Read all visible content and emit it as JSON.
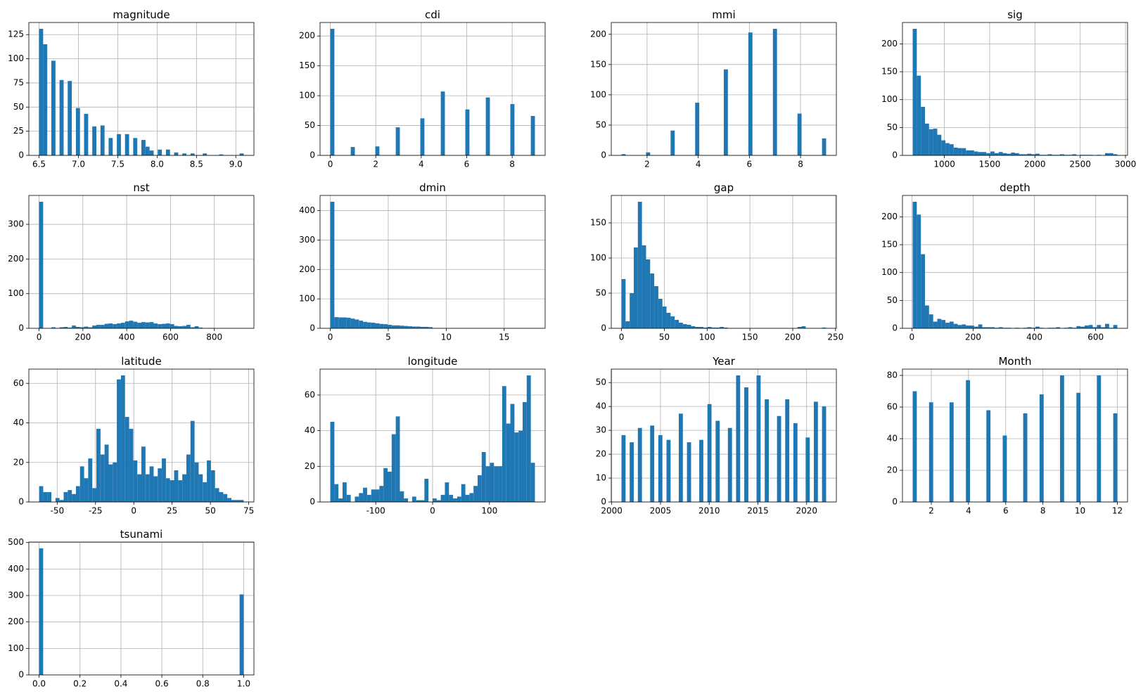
{
  "chart_data": [
    {
      "type": "histogram",
      "title": "magnitude",
      "color": "#1f77b4",
      "grid": true,
      "bins": [
        6.5,
        6.552,
        6.604,
        6.656,
        6.708,
        6.76,
        6.812,
        6.864,
        6.916,
        6.968,
        7.02,
        7.072,
        7.124,
        7.176,
        7.228,
        7.28,
        7.332,
        7.384,
        7.436,
        7.488,
        7.54,
        7.592,
        7.644,
        7.696,
        7.748,
        7.8,
        7.852,
        7.904,
        7.956,
        8.008,
        8.06,
        8.112,
        8.164,
        8.216,
        8.268,
        8.32,
        8.372,
        8.424,
        8.476,
        8.528,
        8.58,
        8.632,
        8.684,
        8.736,
        8.788,
        8.84,
        8.892,
        8.944,
        8.996,
        9.048,
        9.1
      ],
      "counts": [
        131,
        115,
        0,
        98,
        0,
        78,
        0,
        77,
        0,
        49,
        0,
        43,
        0,
        30,
        0,
        31,
        0,
        18,
        0,
        22,
        0,
        22,
        0,
        18,
        0,
        16,
        9,
        5,
        0,
        6,
        0,
        6,
        0,
        3,
        0,
        2,
        0,
        2,
        0,
        0,
        2,
        0,
        0,
        0,
        1,
        0,
        0,
        0,
        0,
        2
      ],
      "xlim": [
        6.37,
        9.23
      ],
      "ylim": [
        0,
        137.55
      ],
      "xticks": [
        6.5,
        {
          "value": 7,
          "label": "7.0"
        },
        7.5,
        {
          "value": 8,
          "label": "8.0"
        },
        8.5,
        {
          "value": 9,
          "label": "9.0"
        }
      ],
      "yticks": [
        0,
        25,
        50,
        75,
        100,
        125
      ]
    },
    {
      "type": "histogram",
      "title": "cdi",
      "color": "#1f77b4",
      "grid": true,
      "bins": [
        0,
        0.18,
        0.9,
        1.08,
        1.98,
        2.16,
        2.88,
        3.06,
        3.96,
        4.14,
        4.86,
        5.04,
        5.94,
        6.12,
        6.84,
        7.02,
        7.92,
        8.1,
        8.82,
        9
      ],
      "counts": [
        212,
        0,
        14,
        0,
        15,
        0,
        47,
        0,
        62,
        0,
        107,
        0,
        77,
        0,
        97,
        0,
        86,
        0,
        66
      ],
      "xlim": [
        -0.45,
        9.45
      ],
      "ylim": [
        0,
        222.6
      ],
      "xticks": [
        0,
        2,
        4,
        6,
        8
      ],
      "yticks": [
        0,
        50,
        100,
        150,
        200
      ]
    },
    {
      "type": "histogram",
      "title": "mmi",
      "color": "#1f77b4",
      "grid": true,
      "bins": [
        1,
        1.16,
        1.96,
        2.12,
        2.92,
        3.08,
        3.88,
        4.04,
        5,
        5.16,
        5.96,
        6.12,
        6.92,
        7.08,
        7.88,
        8.04,
        8.84,
        9
      ],
      "counts": [
        2,
        0,
        5,
        0,
        41,
        0,
        87,
        0,
        142,
        0,
        203,
        0,
        209,
        0,
        69,
        0,
        28
      ],
      "xlim": [
        0.6,
        9.4
      ],
      "ylim": [
        0,
        219.45
      ],
      "xticks": [
        2,
        4,
        6,
        8
      ],
      "yticks": [
        0,
        50,
        100,
        150,
        200
      ]
    },
    {
      "type": "histogram",
      "title": "sig",
      "color": "#1f77b4",
      "grid": true,
      "bins": [
        650,
        695.2,
        740.4,
        785.6,
        830.8,
        876,
        921.2,
        966.4,
        1011.6,
        1056.8,
        1102,
        1147.2,
        1192.4,
        1237.6,
        1282.8,
        1328,
        1373.2,
        1418.4,
        1463.6,
        1508.8,
        1554,
        1599.2,
        1644.4,
        1689.6,
        1734.8,
        1780,
        1825.2,
        1870.4,
        1915.6,
        1960.8,
        2006,
        2051.2,
        2096.4,
        2141.6,
        2186.8,
        2232,
        2277.2,
        2322.4,
        2367.6,
        2412.8,
        2458,
        2503.2,
        2548.4,
        2593.6,
        2638.8,
        2684,
        2729.2,
        2774.4,
        2819.6,
        2864.8,
        2910
      ],
      "counts": [
        227,
        143,
        87,
        57,
        47,
        48,
        37,
        27,
        22,
        20,
        14,
        13,
        13,
        9,
        9,
        7,
        6,
        6,
        4,
        7,
        4,
        6,
        4,
        3,
        5,
        4,
        2,
        2,
        3,
        2,
        3,
        1,
        1,
        2,
        1,
        1,
        2,
        1,
        1,
        2,
        0,
        1,
        1,
        1,
        0,
        1,
        0,
        4,
        4,
        2
      ],
      "xlim": [
        537,
        3023
      ],
      "ylim": [
        0,
        238.35
      ],
      "xticks": [
        1000,
        1500,
        2000,
        2500,
        3000
      ],
      "yticks": [
        0,
        50,
        100,
        150,
        200
      ]
    },
    {
      "type": "histogram",
      "title": "nst",
      "color": "#1f77b4",
      "grid": true,
      "bins": [
        0,
        18.68,
        37.36,
        56.04,
        74.72,
        93.4,
        112.08,
        130.76,
        149.44,
        168.12,
        186.8,
        205.48,
        224.16,
        242.84,
        261.52,
        280.2,
        298.88,
        317.56,
        336.24,
        354.92,
        373.6,
        392.28,
        410.96,
        429.64,
        448.32,
        467,
        485.68,
        504.36,
        523.04,
        541.72,
        560.4,
        579.08,
        597.76,
        616.44,
        635.12,
        653.8,
        672.48,
        691.16,
        709.84,
        728.52,
        747.2,
        765.88,
        784.56,
        803.24,
        821.92,
        840.6,
        859.28,
        877.96,
        896.64,
        915.32,
        934
      ],
      "counts": [
        365,
        0,
        1,
        3,
        1,
        3,
        4,
        2,
        8,
        4,
        3,
        5,
        3,
        8,
        10,
        10,
        13,
        14,
        12,
        14,
        16,
        20,
        22,
        19,
        16,
        18,
        17,
        18,
        14,
        12,
        13,
        14,
        12,
        7,
        6,
        7,
        10,
        3,
        6,
        2,
        0,
        1,
        1,
        0,
        0,
        0,
        1,
        0,
        0,
        1
      ],
      "xlim": [
        -46.7,
        980.7
      ],
      "ylim": [
        0,
        383.25
      ],
      "xticks": [
        0,
        200,
        400,
        600,
        800
      ],
      "yticks": [
        0,
        100,
        200,
        300
      ]
    },
    {
      "type": "histogram",
      "title": "dmin",
      "color": "#1f77b4",
      "grid": true,
      "bins": [
        0,
        0.353,
        0.706,
        1.059,
        1.412,
        1.765,
        2.118,
        2.471,
        2.824,
        3.177,
        3.53,
        3.883,
        4.236,
        4.589,
        4.942,
        5.295,
        5.648,
        6.001,
        6.354,
        6.707,
        7.06,
        7.413,
        7.766,
        8.119,
        8.472,
        8.825,
        17.297,
        17.65
      ],
      "counts": [
        430,
        38,
        37,
        37,
        36,
        33,
        30,
        26,
        22,
        20,
        19,
        17,
        15,
        14,
        12,
        10,
        10,
        9,
        8,
        7,
        6,
        6,
        5,
        5,
        4,
        0,
        1
      ],
      "xlim": [
        -0.8825,
        18.5325
      ],
      "ylim": [
        0,
        451.5
      ],
      "xticks": [
        0,
        5,
        10,
        15
      ],
      "yticks": [
        0,
        100,
        200,
        300,
        400
      ]
    },
    {
      "type": "histogram",
      "title": "gap",
      "color": "#1f77b4",
      "grid": true,
      "bins": [
        0,
        4.78,
        9.56,
        14.34,
        19.12,
        23.9,
        28.68,
        33.46,
        38.24,
        43.02,
        47.8,
        52.58,
        57.36,
        62.14,
        66.92,
        71.7,
        76.48,
        81.26,
        86.04,
        90.82,
        95.6,
        100.38,
        105.16,
        109.94,
        114.72,
        119.5,
        124.28,
        205.54,
        210.32,
        215.1,
        234.22,
        239
      ],
      "counts": [
        70,
        10,
        50,
        115,
        180,
        118,
        98,
        78,
        60,
        42,
        31,
        22,
        17,
        12,
        8,
        6,
        5,
        3,
        2,
        2,
        1,
        2,
        1,
        1,
        2,
        1,
        0,
        2,
        3,
        0,
        1
      ],
      "xlim": [
        -11.95,
        250.95
      ],
      "ylim": [
        0,
        189
      ],
      "xticks": [
        0,
        50,
        100,
        150,
        200,
        250
      ],
      "yticks": [
        0,
        50,
        100,
        150
      ]
    },
    {
      "type": "histogram",
      "title": "depth",
      "color": "#1f77b4",
      "grid": true,
      "bins": [
        2.7,
        16.06,
        29.42,
        42.78,
        56.14,
        69.5,
        82.86,
        96.22,
        109.58,
        122.94,
        136.3,
        149.66,
        163.02,
        176.38,
        189.74,
        203.1,
        216.46,
        229.82,
        243.18,
        256.54,
        269.9,
        283.26,
        296.62,
        309.98,
        323.34,
        336.7,
        350.06,
        363.42,
        376.78,
        390.14,
        403.5,
        416.86,
        430.22,
        443.58,
        456.94,
        470.3,
        483.66,
        497.02,
        510.38,
        523.74,
        537.1,
        550.46,
        563.82,
        577.18,
        590.54,
        603.9,
        617.26,
        630.62,
        643.98,
        657.34,
        670.7
      ],
      "counts": [
        227,
        204,
        133,
        41,
        25,
        12,
        17,
        15,
        10,
        12,
        8,
        6,
        7,
        5,
        5,
        3,
        7,
        2,
        2,
        2,
        1,
        2,
        1,
        1,
        0,
        1,
        0,
        1,
        2,
        1,
        3,
        1,
        0,
        1,
        1,
        2,
        0,
        1,
        2,
        1,
        4,
        3,
        5,
        6,
        2,
        6,
        2,
        8,
        1,
        6
      ],
      "xlim": [
        -30.7,
        704.1
      ],
      "ylim": [
        0,
        238.35
      ],
      "xticks": [
        0,
        200,
        400,
        600
      ],
      "yticks": [
        0,
        50,
        100,
        150,
        200
      ]
    },
    {
      "type": "histogram",
      "title": "latitude",
      "color": "#1f77b4",
      "grid": true,
      "bins": [
        -61.8,
        -59.13,
        -56.46,
        -53.79,
        -51.12,
        -48.45,
        -45.78,
        -43.11,
        -40.44,
        -37.77,
        -35.1,
        -32.43,
        -29.76,
        -27.09,
        -24.42,
        -21.75,
        -19.08,
        -16.41,
        -13.74,
        -11.07,
        -8.4,
        -5.73,
        -3.06,
        -0.39,
        2.28,
        4.95,
        7.62,
        10.29,
        12.96,
        15.63,
        18.3,
        20.97,
        23.64,
        26.31,
        28.98,
        31.65,
        34.32,
        36.99,
        39.66,
        42.33,
        45,
        47.67,
        50.34,
        53.01,
        55.68,
        58.35,
        61.02,
        63.69,
        66.36,
        69.03,
        71.7
      ],
      "counts": [
        8,
        5,
        5,
        0,
        2,
        1,
        5,
        6,
        4,
        8,
        18,
        12,
        22,
        7,
        37,
        24,
        29,
        19,
        20,
        62,
        64,
        43,
        37,
        21,
        14,
        28,
        14,
        18,
        13,
        17,
        22,
        12,
        11,
        16,
        11,
        14,
        24,
        41,
        20,
        14,
        10,
        21,
        16,
        7,
        5,
        4,
        2,
        1,
        1,
        1
      ],
      "xlim": [
        -68.5,
        78.4
      ],
      "ylim": [
        0,
        67.2
      ],
      "xticks": [
        -50,
        -25,
        0,
        25,
        50,
        75
      ],
      "yticks": [
        0,
        20,
        40,
        60
      ]
    },
    {
      "type": "histogram",
      "title": "longitude",
      "color": "#1f77b4",
      "grid": true,
      "bins": [
        -180,
        -172.8,
        -165.6,
        -158.4,
        -151.2,
        -144,
        -136.8,
        -129.6,
        -122.4,
        -115.2,
        -108,
        -100.8,
        -93.6,
        -86.4,
        -79.2,
        -72,
        -64.8,
        -57.6,
        -50.4,
        -43.2,
        -36,
        -28.8,
        -21.6,
        -14.4,
        -7.2,
        0,
        7.2,
        14.4,
        21.6,
        28.8,
        36,
        43.2,
        50.4,
        57.6,
        64.8,
        72,
        79.2,
        86.4,
        93.6,
        100.8,
        108,
        115.2,
        122.4,
        129.6,
        136.8,
        144,
        151.2,
        158.4,
        165.6,
        172.8,
        180
      ],
      "counts": [
        45,
        10,
        2,
        11,
        4,
        0,
        3,
        5,
        8,
        4,
        7,
        7,
        9,
        19,
        17,
        38,
        48,
        6,
        2,
        0,
        3,
        1,
        1,
        13,
        0,
        2,
        1,
        4,
        11,
        4,
        2,
        3,
        10,
        4,
        5,
        9,
        15,
        28,
        20,
        22,
        20,
        20,
        65,
        44,
        55,
        39,
        40,
        56,
        71,
        22
      ],
      "xlim": [
        -198,
        198
      ],
      "ylim": [
        0,
        74.55
      ],
      "xticks": [
        -100,
        0,
        100
      ],
      "yticks": [
        0,
        20,
        40,
        60
      ]
    },
    {
      "type": "histogram",
      "title": "Year",
      "color": "#1f77b4",
      "grid": true,
      "bins": [
        2001,
        2001.42,
        2001.84,
        2002.26,
        2002.68,
        2003.1,
        2003.94,
        2004.36,
        2004.78,
        2005.2,
        2005.62,
        2006.04,
        2006.88,
        2007.3,
        2007.72,
        2008.14,
        2008.98,
        2009.4,
        2009.82,
        2010.24,
        2010.66,
        2011.08,
        2011.92,
        2012.34,
        2012.76,
        2013.18,
        2013.6,
        2014.02,
        2014.86,
        2015.28,
        2015.7,
        2016.12,
        2016.96,
        2017.38,
        2017.8,
        2018.22,
        2018.64,
        2019.06,
        2019.9,
        2020.32,
        2020.74,
        2021.16,
        2021.58,
        2022
      ],
      "counts": [
        28,
        0,
        25,
        0,
        31,
        0,
        32,
        0,
        28,
        0,
        26,
        0,
        37,
        0,
        25,
        0,
        26,
        0,
        41,
        0,
        34,
        0,
        31,
        0,
        53,
        0,
        48,
        0,
        53,
        0,
        43,
        0,
        36,
        0,
        43,
        0,
        33,
        0,
        27,
        0,
        42,
        0,
        40
      ],
      "xlim": [
        1999.95,
        2023.05
      ],
      "ylim": [
        0,
        55.65
      ],
      "xticks": [
        2000,
        2005,
        2010,
        2015,
        2020
      ],
      "yticks": [
        0,
        10,
        20,
        30,
        40,
        50
      ]
    },
    {
      "type": "histogram",
      "title": "Month",
      "color": "#1f77b4",
      "grid": true,
      "bins": [
        1,
        1.22,
        1.88,
        2.1,
        2.98,
        3.2,
        3.86,
        4.08,
        4.96,
        5.18,
        5.84,
        6.06,
        6.94,
        7.16,
        7.82,
        8.04,
        8.92,
        9.14,
        9.8,
        10.02,
        10.9,
        11.12,
        11.78,
        12
      ],
      "counts": [
        70,
        0,
        63,
        0,
        63,
        0,
        77,
        0,
        58,
        0,
        42,
        0,
        56,
        0,
        68,
        0,
        80,
        0,
        69,
        0,
        80,
        0,
        56
      ],
      "xlim": [
        0.45,
        12.55
      ],
      "ylim": [
        0,
        84
      ],
      "xticks": [
        2,
        4,
        6,
        8,
        10,
        12
      ],
      "yticks": [
        0,
        20,
        40,
        60,
        80
      ]
    },
    {
      "type": "histogram",
      "title": "tsunami",
      "color": "#1f77b4",
      "grid": true,
      "bins": [
        0,
        0.02,
        0.98,
        1
      ],
      "counts": [
        478,
        0,
        304
      ],
      "xlim": [
        -0.05,
        1.05
      ],
      "ylim": [
        0,
        501.9
      ],
      "xticks": [
        {
          "value": 0,
          "label": "0.0"
        },
        0.2,
        0.4,
        0.6,
        0.8,
        {
          "value": 1,
          "label": "1.0"
        }
      ],
      "yticks": [
        0,
        100,
        200,
        300,
        400,
        500
      ]
    }
  ]
}
